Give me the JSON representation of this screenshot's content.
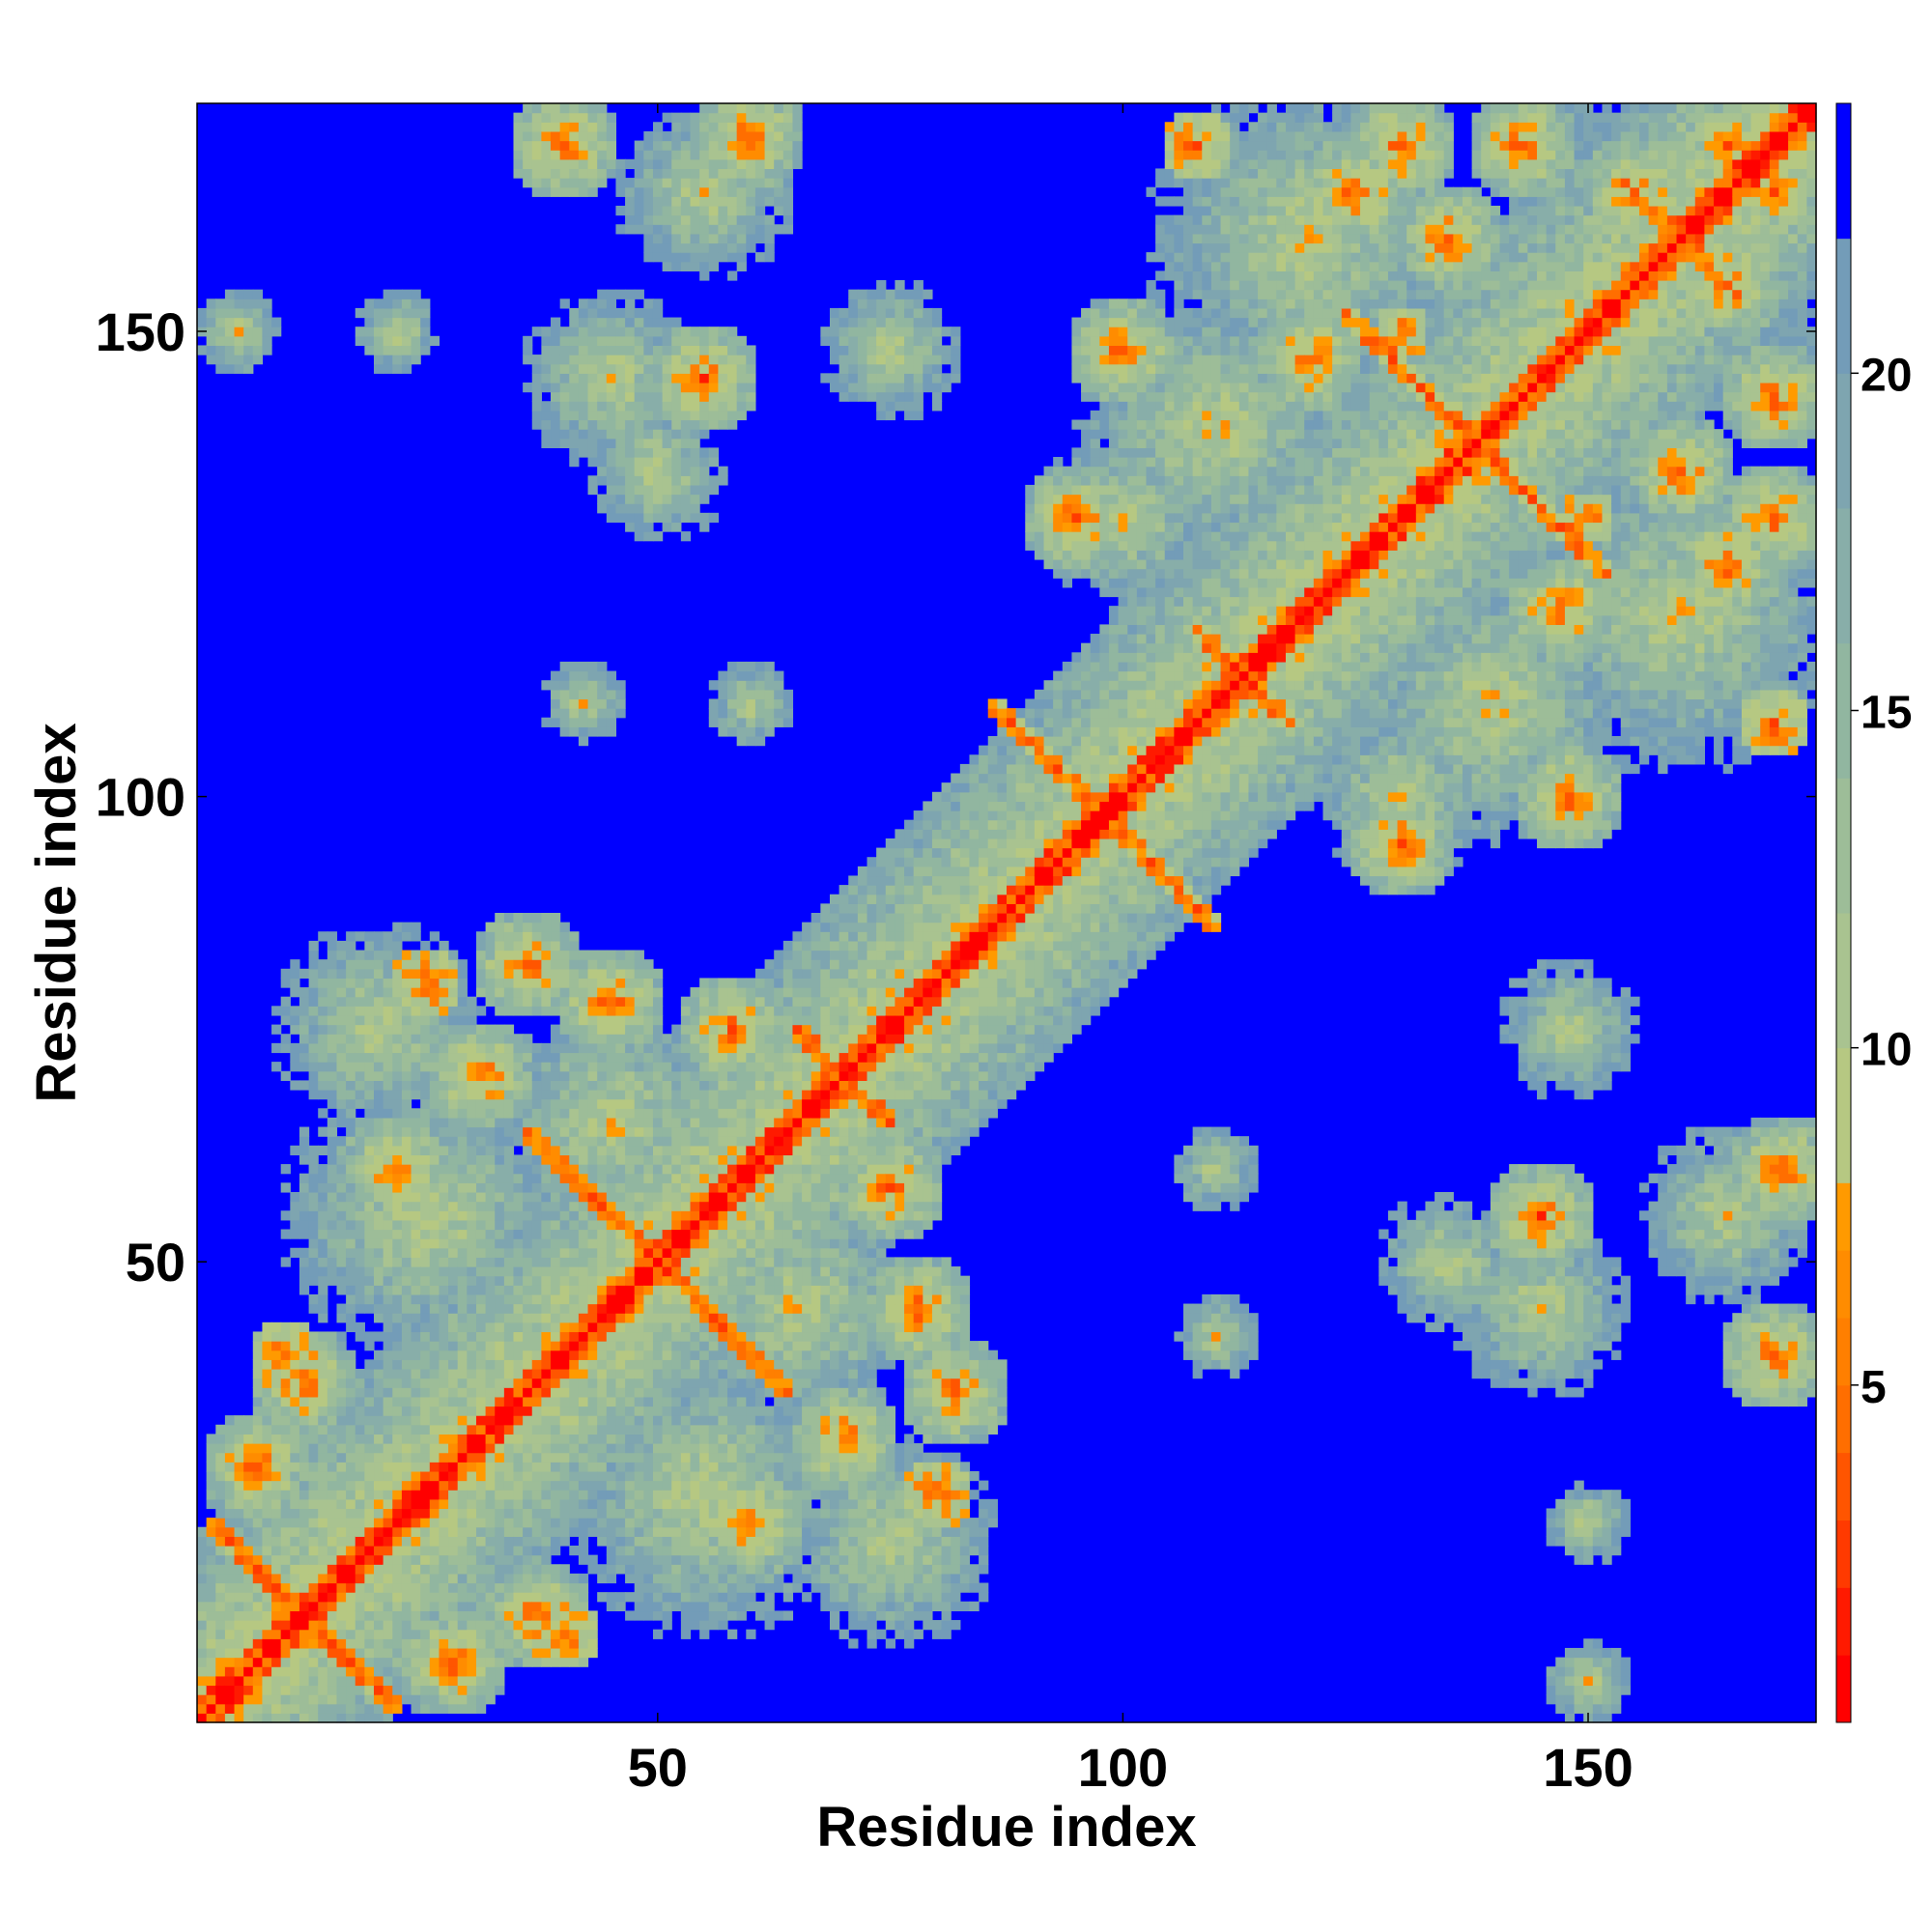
{
  "chart_data": {
    "type": "heatmap",
    "title": "",
    "xlabel": "Residue index",
    "ylabel": "Residue index",
    "n_residues": 174,
    "xlim": [
      1,
      174
    ],
    "ylim": [
      1,
      174
    ],
    "x_ticks": [
      50,
      100,
      150
    ],
    "y_ticks": [
      50,
      100,
      150
    ],
    "colorbar": {
      "ticks": [
        5,
        10,
        15,
        20
      ],
      "range": [
        0,
        24
      ],
      "bands": [
        {
          "from": 0,
          "to": 1,
          "color": "#ff0000"
        },
        {
          "from": 1,
          "to": 2,
          "color": "#ff1a00"
        },
        {
          "from": 2,
          "to": 3,
          "color": "#ff3a00"
        },
        {
          "from": 3,
          "to": 4,
          "color": "#ff5500"
        },
        {
          "from": 4,
          "to": 5,
          "color": "#ff6e00"
        },
        {
          "from": 5,
          "to": 6,
          "color": "#ff7f00"
        },
        {
          "from": 6,
          "to": 7,
          "color": "#ff8c00"
        },
        {
          "from": 7,
          "to": 8,
          "color": "#ff9a00"
        },
        {
          "from": 8,
          "to": 10,
          "color": "#b6c882"
        },
        {
          "from": 10,
          "to": 12,
          "color": "#a9c390"
        },
        {
          "from": 12,
          "to": 14,
          "color": "#9dbd98"
        },
        {
          "from": 14,
          "to": 16,
          "color": "#91b6a0"
        },
        {
          "from": 16,
          "to": 18,
          "color": "#88aea9"
        },
        {
          "from": 18,
          "to": 20,
          "color": "#7ea5b0"
        },
        {
          "from": 20,
          "to": 22,
          "color": "#739cb8"
        },
        {
          "from": 22,
          "to": 24,
          "color": "#0000ff"
        }
      ]
    },
    "background_value": 24,
    "diagonal_value": 0,
    "blobs": [
      {
        "x": 15,
        "y": 15,
        "r": 16
      },
      {
        "x": 35,
        "y": 35,
        "r": 18
      },
      {
        "x": 55,
        "y": 55,
        "r": 18
      },
      {
        "x": 75,
        "y": 75,
        "r": 14
      },
      {
        "x": 98,
        "y": 98,
        "r": 12
      },
      {
        "x": 115,
        "y": 115,
        "r": 18
      },
      {
        "x": 135,
        "y": 135,
        "r": 22
      },
      {
        "x": 158,
        "y": 158,
        "r": 20
      },
      {
        "x": 25,
        "y": 55,
        "r": 16
      },
      {
        "x": 45,
        "y": 65,
        "r": 14
      },
      {
        "x": 20,
        "y": 75,
        "r": 12
      },
      {
        "x": 60,
        "y": 20,
        "r": 18
      },
      {
        "x": 70,
        "y": 40,
        "r": 14
      },
      {
        "x": 40,
        "y": 10,
        "r": 14
      },
      {
        "x": 75,
        "y": 10,
        "r": 10
      },
      {
        "x": 120,
        "y": 160,
        "r": 18
      },
      {
        "x": 140,
        "y": 110,
        "r": 18
      },
      {
        "x": 160,
        "y": 120,
        "r": 16
      },
      {
        "x": 110,
        "y": 140,
        "r": 16
      },
      {
        "x": 170,
        "y": 140,
        "r": 10
      },
      {
        "x": 125,
        "y": 95,
        "r": 12
      },
      {
        "x": 100,
        "y": 130,
        "r": 10
      },
      {
        "x": 45,
        "y": 145,
        "r": 10
      },
      {
        "x": 55,
        "y": 165,
        "r": 10
      },
      {
        "x": 50,
        "y": 135,
        "r": 8
      },
      {
        "x": 75,
        "y": 148,
        "r": 8
      },
      {
        "x": 60,
        "y": 110,
        "r": 5
      },
      {
        "x": 42,
        "y": 110,
        "r": 5
      },
      {
        "x": 5,
        "y": 150,
        "r": 5
      },
      {
        "x": 22,
        "y": 150,
        "r": 5
      },
      {
        "x": 145,
        "y": 45,
        "r": 10
      },
      {
        "x": 165,
        "y": 55,
        "r": 10
      },
      {
        "x": 135,
        "y": 50,
        "r": 8
      },
      {
        "x": 148,
        "y": 75,
        "r": 8
      },
      {
        "x": 110,
        "y": 60,
        "r": 5
      },
      {
        "x": 110,
        "y": 42,
        "r": 5
      },
      {
        "x": 150,
        "y": 5,
        "r": 5
      },
      {
        "x": 150,
        "y": 22,
        "r": 5
      },
      {
        "x": 170,
        "y": 60,
        "r": 6
      }
    ],
    "contacts": [
      {
        "x": 7,
        "y": 28
      },
      {
        "x": 28,
        "y": 7
      },
      {
        "x": 12,
        "y": 37
      },
      {
        "x": 37,
        "y": 12
      },
      {
        "x": 22,
        "y": 60
      },
      {
        "x": 60,
        "y": 22
      },
      {
        "x": 31,
        "y": 70
      },
      {
        "x": 70,
        "y": 31
      },
      {
        "x": 36,
        "y": 82
      },
      {
        "x": 82,
        "y": 36
      },
      {
        "x": 45,
        "y": 78
      },
      {
        "x": 78,
        "y": 45
      },
      {
        "x": 58,
        "y": 75
      },
      {
        "x": 75,
        "y": 58
      },
      {
        "x": 95,
        "y": 130
      },
      {
        "x": 130,
        "y": 95
      },
      {
        "x": 100,
        "y": 148
      },
      {
        "x": 148,
        "y": 100
      },
      {
        "x": 120,
        "y": 147
      },
      {
        "x": 147,
        "y": 120
      },
      {
        "x": 125,
        "y": 165
      },
      {
        "x": 165,
        "y": 125
      },
      {
        "x": 130,
        "y": 170
      },
      {
        "x": 170,
        "y": 130
      },
      {
        "x": 135,
        "y": 160
      },
      {
        "x": 160,
        "y": 135
      },
      {
        "x": 143,
        "y": 170
      },
      {
        "x": 170,
        "y": 143
      },
      {
        "x": 155,
        "y": 165
      },
      {
        "x": 165,
        "y": 155
      },
      {
        "x": 40,
        "y": 170
      },
      {
        "x": 170,
        "y": 40
      },
      {
        "x": 60,
        "y": 171
      },
      {
        "x": 171,
        "y": 60
      },
      {
        "x": 55,
        "y": 145
      },
      {
        "x": 145,
        "y": 55
      }
    ],
    "antidiagonals": [
      {
        "cx": 12,
        "cy": 12,
        "len": 10
      },
      {
        "cx": 50,
        "cy": 50,
        "len": 14
      },
      {
        "cx": 98,
        "cy": 98,
        "len": 12
      },
      {
        "cx": 138,
        "cy": 138,
        "len": 14
      },
      {
        "cx": 160,
        "cy": 160,
        "len": 6
      },
      {
        "cx": 113,
        "cy": 113,
        "len": 5
      },
      {
        "cx": 70,
        "cy": 70,
        "len": 5
      }
    ],
    "hotspots": [
      {
        "x": 10,
        "y": 40,
        "r": 4
      },
      {
        "x": 40,
        "y": 10,
        "r": 4
      },
      {
        "x": 25,
        "y": 80,
        "r": 4
      },
      {
        "x": 80,
        "y": 25,
        "r": 4
      },
      {
        "x": 108,
        "y": 170,
        "r": 4
      },
      {
        "x": 170,
        "y": 108,
        "r": 4
      },
      {
        "x": 170,
        "y": 165,
        "r": 3
      },
      {
        "x": 165,
        "y": 170,
        "r": 3
      },
      {
        "x": 130,
        "y": 150,
        "r": 3
      },
      {
        "x": 150,
        "y": 130,
        "r": 3
      }
    ]
  }
}
